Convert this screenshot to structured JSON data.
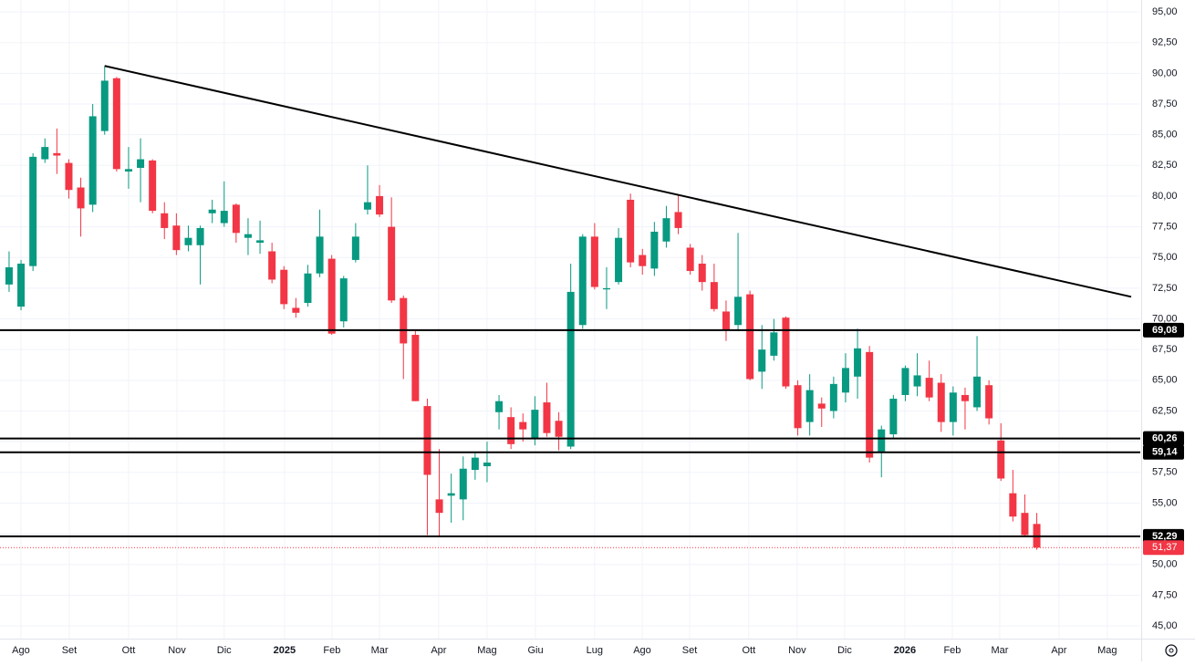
{
  "chart_data": {
    "type": "candlestick",
    "up_color": "#089981",
    "down_color": "#f23645",
    "grid": true,
    "xlim": [
      -0.76,
      94.66
    ],
    "ylim": [
      43.96,
      95.97
    ],
    "xticks": [
      {
        "value": 0.99,
        "label": "Ago"
      },
      {
        "value": 5.04,
        "label": "Set"
      },
      {
        "value": 10.0,
        "label": "Ott"
      },
      {
        "value": 14.05,
        "label": "Nov"
      },
      {
        "value": 18.0,
        "label": "Dic"
      },
      {
        "value": 23.05,
        "label": "2025"
      },
      {
        "value": 27.02,
        "label": "Feb"
      },
      {
        "value": 31.0,
        "label": "Mar"
      },
      {
        "value": 35.95,
        "label": "Apr"
      },
      {
        "value": 40.0,
        "label": "Mag"
      },
      {
        "value": 44.05,
        "label": "Giu"
      },
      {
        "value": 49.0,
        "label": "Lug"
      },
      {
        "value": 52.98,
        "label": "Ago"
      },
      {
        "value": 56.95,
        "label": "Set"
      },
      {
        "value": 61.9,
        "label": "Ott"
      },
      {
        "value": 65.95,
        "label": "Nov"
      },
      {
        "value": 69.92,
        "label": "Dic"
      },
      {
        "value": 74.96,
        "label": "2026"
      },
      {
        "value": 78.93,
        "label": "Feb"
      },
      {
        "value": 82.9,
        "label": "Mar"
      },
      {
        "value": 87.86,
        "label": "Apr"
      },
      {
        "value": 91.9,
        "label": "Mag"
      }
    ],
    "yticks": [
      {
        "value": 95,
        "label": "95,00"
      },
      {
        "value": 92.5,
        "label": "92,50"
      },
      {
        "value": 90,
        "label": "90,00"
      },
      {
        "value": 87.5,
        "label": "87,50"
      },
      {
        "value": 85,
        "label": "85,00"
      },
      {
        "value": 82.5,
        "label": "82,50"
      },
      {
        "value": 80,
        "label": "80,00"
      },
      {
        "value": 77.5,
        "label": "77,50"
      },
      {
        "value": 75,
        "label": "75,00"
      },
      {
        "value": 72.5,
        "label": "72,50"
      },
      {
        "value": 70,
        "label": "70,00"
      },
      {
        "value": 67.5,
        "label": "67,50"
      },
      {
        "value": 65,
        "label": "65,00"
      },
      {
        "value": 62.5,
        "label": "62,50"
      },
      {
        "value": 60,
        "label": "60,00"
      },
      {
        "value": 57.5,
        "label": "57,50"
      },
      {
        "value": 55,
        "label": "55,00"
      },
      {
        "value": 52.5,
        "label": "52,50"
      },
      {
        "value": 50,
        "label": "50,00"
      },
      {
        "value": 47.5,
        "label": "47,50"
      },
      {
        "value": 45,
        "label": "45,00"
      }
    ],
    "open": [
      72.8,
      71,
      74.3,
      83,
      83.5,
      82.7,
      80.7,
      79.3,
      85.3,
      89.6,
      82,
      82.3,
      82.9,
      78.6,
      77.6,
      76,
      76,
      78.6,
      77.8,
      79.3,
      76.6,
      76.2,
      75.5,
      74,
      70.9,
      71.3,
      73.7,
      74.9,
      69.8,
      74.8,
      78.9,
      80,
      77.5,
      71.7,
      68.7,
      62.9,
      55.3,
      55.6,
      55.3,
      57.7,
      58,
      62.4,
      62,
      61.6,
      60.2,
      63.2,
      61.7,
      59.6,
      69.5,
      76.7,
      72.4,
      73,
      79.7,
      75.2,
      74.1,
      76.3,
      78.7,
      75.8,
      74.5,
      73,
      70.6,
      69.5,
      72,
      65.7,
      67,
      70.1,
      64.6,
      61.6,
      63.1,
      62.5,
      64,
      65.3,
      67.3,
      59.2,
      60.6,
      63.8,
      64.5,
      65.2,
      64.8,
      61.6,
      63.8,
      62.8,
      64.6,
      60.1,
      55.8,
      54.2,
      53.3
    ],
    "high": [
      75.5,
      74.8,
      83.5,
      84.7,
      85.5,
      83,
      81.5,
      87.5,
      90.6,
      89.7,
      84,
      84.7,
      83,
      79.5,
      78.6,
      77.6,
      77.6,
      79.7,
      81.2,
      79.4,
      78.2,
      78,
      76.2,
      74.3,
      71.7,
      74.4,
      78.9,
      75.2,
      73.5,
      77.8,
      82.5,
      80.9,
      79.9,
      71.9,
      69,
      63.5,
      59.4,
      57.4,
      58.8,
      59.1,
      60,
      63.8,
      62.8,
      62.3,
      63.7,
      64.8,
      62.4,
      74.5,
      76.9,
      77.8,
      74.2,
      77.4,
      80.2,
      75.7,
      77.9,
      79.2,
      80.1,
      76.1,
      75.2,
      74.5,
      71.5,
      77,
      72.3,
      69.5,
      70,
      70.2,
      65,
      65.5,
      63.6,
      65.3,
      67.2,
      69.2,
      67.8,
      61.3,
      63.8,
      66.2,
      67.2,
      66.6,
      65.5,
      64.5,
      64.4,
      68.6,
      65,
      61.5,
      57.7,
      55.7,
      54.2
    ],
    "low": [
      72.2,
      70.7,
      73.9,
      82.7,
      81.8,
      79.8,
      76.7,
      78.7,
      85,
      82,
      80.6,
      79.5,
      78.6,
      76.5,
      75.2,
      75.5,
      72.8,
      77.8,
      77.5,
      76.2,
      75.2,
      75.3,
      72.9,
      70.8,
      70.1,
      71,
      73.4,
      68.7,
      69.3,
      74.6,
      78.5,
      78.3,
      71.3,
      65.1,
      63.3,
      52.4,
      52.3,
      53.4,
      53.6,
      56.9,
      56.7,
      61,
      59.4,
      60,
      59.7,
      60.4,
      59.3,
      59.4,
      69.2,
      72.4,
      70.8,
      72.8,
      74.2,
      73.6,
      73.5,
      75.8,
      76.9,
      73.6,
      72.3,
      70.6,
      68.2,
      69,
      65,
      64.3,
      66.6,
      64.3,
      60.5,
      60.5,
      61.2,
      61.9,
      63.2,
      63.5,
      58.3,
      57.1,
      60.3,
      63.3,
      63.7,
      63.3,
      60.8,
      60.5,
      61,
      62.5,
      61.4,
      56.8,
      53.5,
      52.3,
      51.2
    ],
    "close": [
      74.2,
      74.5,
      83.2,
      84,
      83.3,
      80.5,
      79,
      86.5,
      89.4,
      82.2,
      82.2,
      83,
      78.8,
      77.4,
      75.6,
      76.6,
      77.4,
      78.9,
      78.8,
      77,
      76.9,
      76.4,
      73.2,
      71.2,
      70.5,
      73.7,
      76.7,
      68.8,
      73.3,
      76.7,
      79.5,
      78.5,
      71.5,
      68,
      63.3,
      57.3,
      54.2,
      55.8,
      57.8,
      58.7,
      58.3,
      63.3,
      59.8,
      61,
      62.6,
      60.7,
      60.4,
      72.2,
      76.7,
      72.6,
      72.5,
      76.6,
      74.6,
      74.3,
      77.1,
      78.2,
      77.4,
      73.9,
      73,
      70.8,
      69.1,
      71.8,
      65.1,
      67.5,
      68.9,
      64.5,
      61.1,
      64.2,
      62.7,
      64.7,
      66,
      67.6,
      58.7,
      61,
      63.5,
      66,
      65.4,
      63.6,
      61.6,
      64,
      63.3,
      65.3,
      61.9,
      57,
      53.9,
      52.4,
      51.37
    ],
    "trendline": {
      "x": [
        8,
        93.9
      ],
      "y": [
        90.6,
        71.8
      ],
      "color": "#000000"
    },
    "levels": [
      {
        "value": 69.08,
        "label": "69,08"
      },
      {
        "value": 60.26,
        "label": "60,26"
      },
      {
        "value": 59.14,
        "label": "59,14"
      },
      {
        "value": 52.29,
        "label": "52,29"
      }
    ],
    "level_color": "#000000",
    "last_price": {
      "value": 51.37,
      "label": "51,37"
    },
    "last_color": "#f23645"
  }
}
